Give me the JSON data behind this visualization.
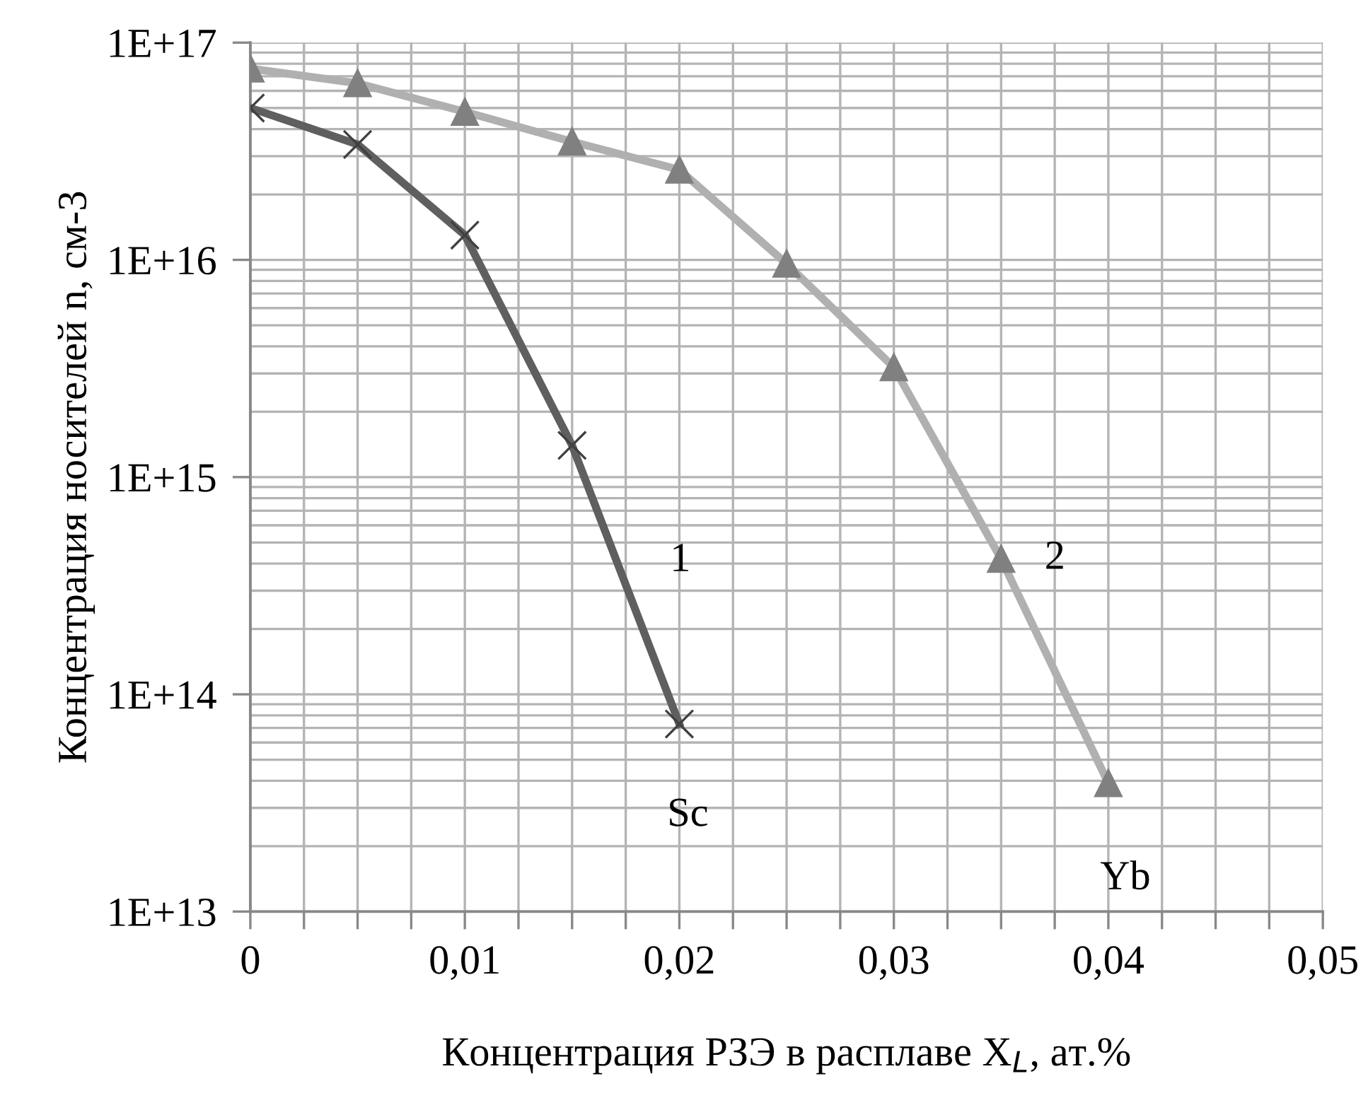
{
  "chart_data": {
    "type": "line",
    "xlabel": "Концентрация РЗЭ в расплаве X$_{L}$, ат.%",
    "ylabel": "Концентрация носителей n, см-3",
    "log": "y",
    "grid": true,
    "legend": false,
    "line_style": "solid",
    "xlim": [
      0,
      0.05
    ],
    "xticks": [
      0,
      {
        "value": 0.01,
        "label": "0,01"
      },
      {
        "value": 0.02,
        "label": "0,02"
      },
      {
        "value": 0.03,
        "label": "0,03"
      },
      {
        "value": 0.04,
        "label": "0,04"
      },
      {
        "value": 0.05,
        "label": "0,05"
      }
    ],
    "ylim": [
      10000000000000.0,
      1e+17
    ],
    "yticks": [
      {
        "value": 10000000000000.0,
        "label": "1E+13"
      },
      {
        "value": 100000000000000.0,
        "label": "1E+14"
      },
      {
        "value": 1000000000000000.0,
        "label": "1E+15"
      },
      {
        "value": 1e+16,
        "label": "1E+16"
      },
      {
        "value": 1e+17,
        "label": "1E+17"
      }
    ],
    "series": [
      {
        "color": "#5f5f5f",
        "marker": "cross",
        "x": [
          0,
          0.005,
          0.01,
          0.015,
          0.02
        ],
        "values": [
          5e+16,
          3.4e+16,
          1.3e+16,
          1400000000000000.0,
          73000000000000.0
        ]
      },
      {
        "color": "#b0b0b0",
        "marker": "triangle",
        "x": [
          0,
          0.005,
          0.01,
          0.015,
          0.02,
          0.025,
          0.03,
          0.035,
          0.04
        ],
        "values": [
          7.6e+16,
          6.5e+16,
          4.8e+16,
          3.5e+16,
          2.6e+16,
          9600000000000000.0,
          3200000000000000.0,
          420000000000000.0,
          39000000000000.0
        ]
      }
    ],
    "annotations": [
      {
        "text": "1",
        "x": 0.01708,
        "y": 410000000000000.0
      },
      {
        "text": "2",
        "x": 0.035,
        "y": 420000000000000.0
      },
      {
        "text": "Sc",
        "x": 0.02,
        "y": 73000000000000.0
      },
      {
        "text": "Yb",
        "x": 0.04,
        "y": 39000000000000.0
      }
    ]
  }
}
